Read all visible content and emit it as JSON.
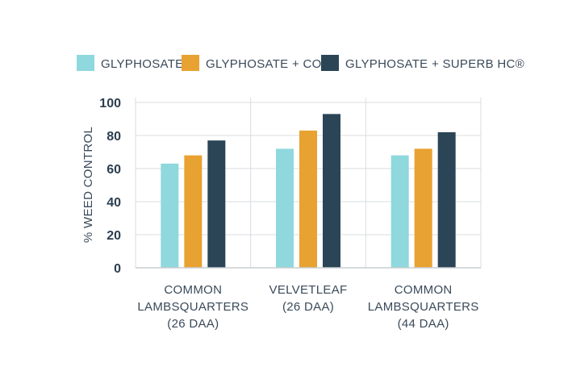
{
  "chart_data": {
    "type": "bar",
    "title": "",
    "xlabel": "",
    "ylabel": "% WEED CONTROL",
    "ylim": [
      0,
      100
    ],
    "yticks": [
      0,
      20,
      40,
      60,
      80,
      100
    ],
    "grid": true,
    "legend_position": "top",
    "categories": [
      [
        "COMMON",
        "LAMBSQUARTERS",
        "(26 DAA)"
      ],
      [
        "VELVETLEAF",
        "(26 DAA)"
      ],
      [
        "COMMON",
        "LAMBSQUARTERS",
        "(44 DAA)"
      ]
    ],
    "series": [
      {
        "name": "GLYPHOSATE",
        "color": "#8fd8dd",
        "values": [
          63,
          72,
          68
        ]
      },
      {
        "name": "GLYPHOSATE + COC",
        "color": "#e8a231",
        "values": [
          68,
          83,
          72
        ]
      },
      {
        "name": "GLYPHOSATE + SUPERB HC®",
        "color": "#2b4557",
        "values": [
          77,
          93,
          82
        ]
      }
    ]
  }
}
